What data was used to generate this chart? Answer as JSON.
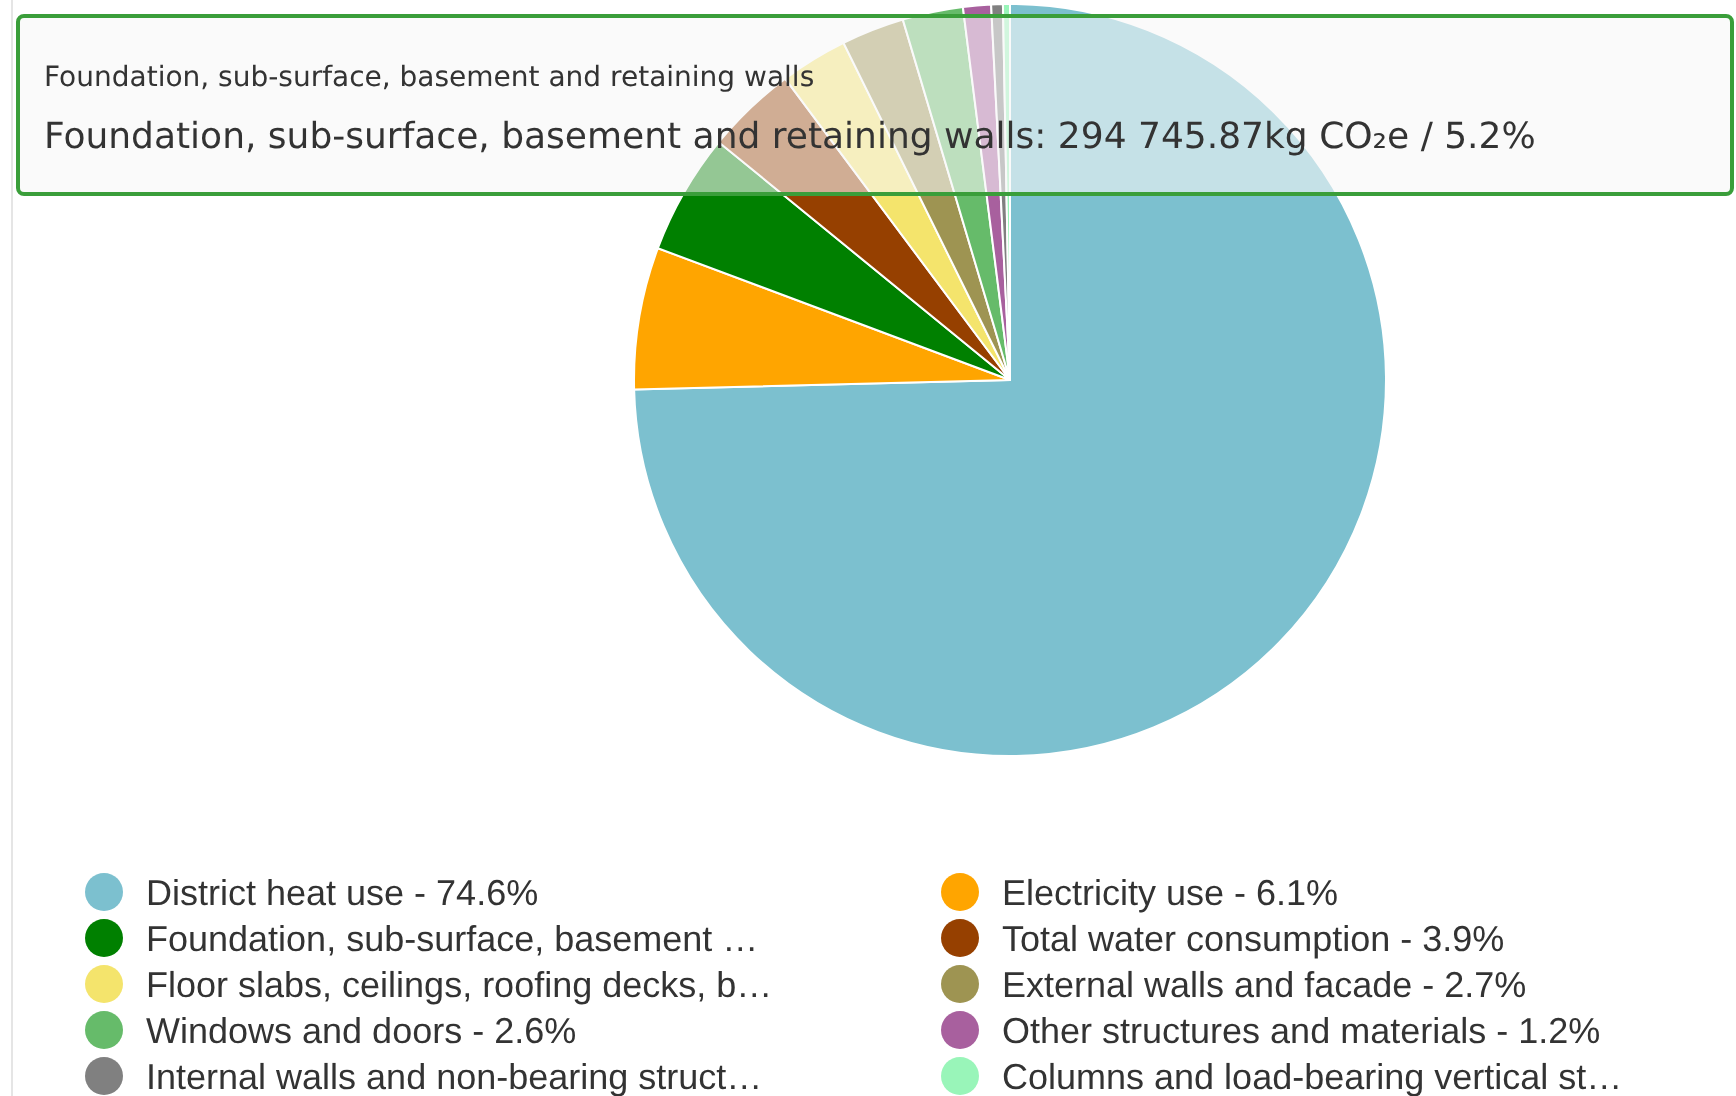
{
  "chart_data": {
    "type": "pie",
    "categories": [
      "District heat use - 74.6%",
      "Electricity use - 6.1%",
      "Foundation, sub-surface, basement …",
      "Total water consumption - 3.9%",
      "Floor slabs, ceilings, roofing decks, b…",
      "External walls and facade - 2.7%",
      "Windows and doors - 2.6%",
      "Other structures and materials - 1.2%",
      "Internal walls and non-bearing struct…",
      "Columns and load-bearing vertical st…"
    ],
    "values": [
      74.6,
      6.1,
      5.2,
      3.9,
      2.9,
      2.7,
      2.6,
      1.2,
      0.5,
      0.3
    ],
    "colors": [
      "#7cc0cf",
      "#ffa500",
      "#008000",
      "#964000",
      "#f4e46c",
      "#9e9452",
      "#66bb6a",
      "#a8609e",
      "#808080",
      "#99f5b9"
    ],
    "legend": "bottom",
    "annotations": [
      "Foundation, sub-surface, basement and retaining walls",
      "Foundation, sub-surface, basement and retaining walls: 294 745.87kg CO₂e / 5.2%"
    ]
  }
}
